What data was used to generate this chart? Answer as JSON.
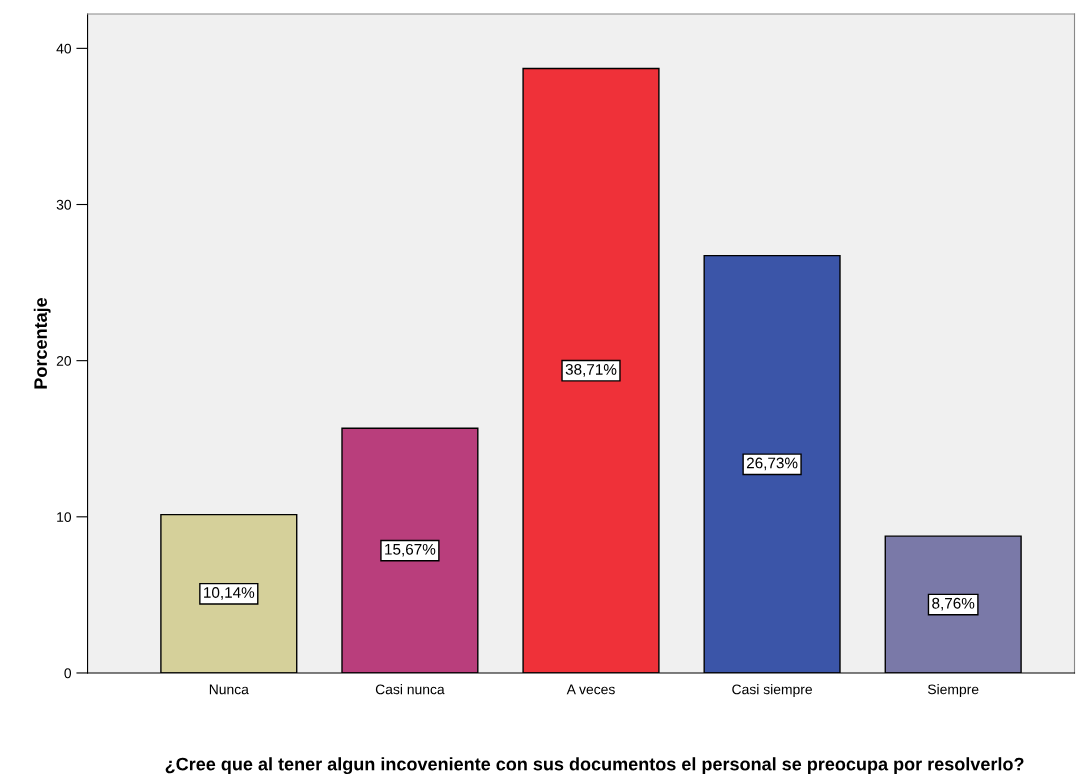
{
  "chart_data": {
    "type": "bar",
    "xlabel": "¿Cree que al tener algun incoveniente con sus documentos el personal se preocupa por resolverlo?",
    "ylabel": "Porcentaje",
    "categories": [
      "Nunca",
      "Casi nunca",
      "A veces",
      "Casi siempre",
      "Siempre"
    ],
    "values": [
      10.14,
      15.67,
      38.71,
      26.73,
      8.76
    ],
    "value_labels": [
      "10,14%",
      "15,67%",
      "38,71%",
      "26,73%",
      "8,76%"
    ],
    "colors": [
      "#d5d09a",
      "#b93e7c",
      "#ef3139",
      "#3b55a8",
      "#7a79a8"
    ],
    "ylim": [
      0,
      42.2
    ],
    "yticks": [
      0,
      10,
      20,
      30,
      40
    ],
    "grid": false,
    "legend": false
  }
}
